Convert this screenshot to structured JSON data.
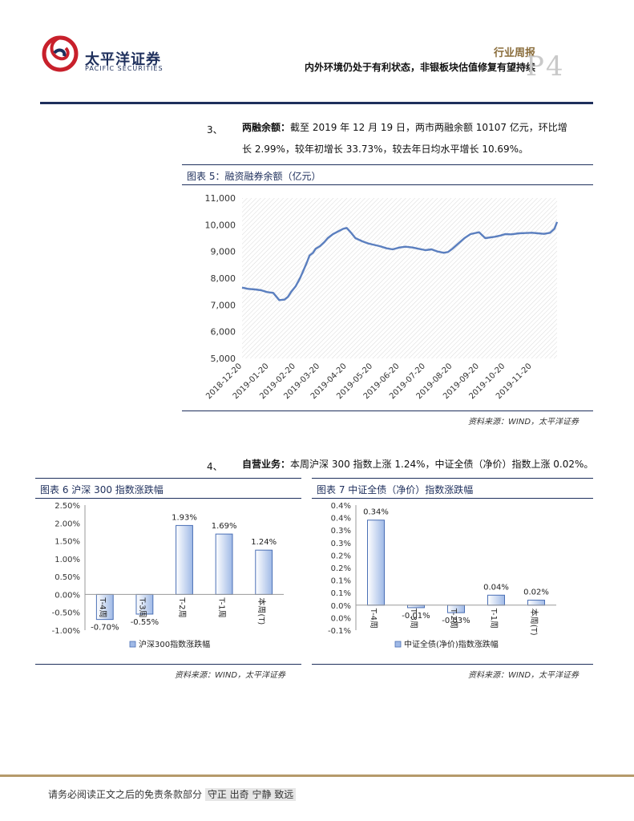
{
  "header": {
    "logo_cn": "太平洋证券",
    "logo_en": "PACIFIC SECURITIES",
    "report_type": "行业周报",
    "headline": "内外环境仍处于有利状态，非银板块估值修复有望持续",
    "page_label": "P4"
  },
  "section3": {
    "num": "3、",
    "title": "两融余额：",
    "line1": "截至 2019 年 12 月 19 日，两市两融余额 10107 亿元，环比增",
    "line2": "长 2.99%，较年初增长 33.73%，较去年日均水平增长 10.69%。"
  },
  "figure5": {
    "caption": "图表 5：融资融券余额（亿元）",
    "source": "资料来源：WIND，太平洋证券"
  },
  "section4": {
    "num": "4、",
    "title": "自营业务：",
    "text": "本周沪深 300 指数上涨 1.24%，中证全债（净价）指数上涨 0.02%。"
  },
  "figure6": {
    "caption": "图表 6  沪深 300 指数涨跌幅",
    "source": "资料来源：WIND，太平洋证券"
  },
  "figure7": {
    "caption": "图表 7  中证全债（净价）指数涨跌幅",
    "source": "资料来源：WIND，太平洋证券"
  },
  "chart_data": [
    {
      "type": "line",
      "title": "",
      "ylim": [
        5000,
        11000
      ],
      "yticks": [
        "5,000",
        "6,000",
        "7,000",
        "8,000",
        "9,000",
        "10,000",
        "11,000"
      ],
      "xticks": [
        "2018-12-20",
        "2019-01-20",
        "2019-02-20",
        "2019-03-20",
        "2019-04-20",
        "2019-05-20",
        "2019-06-20",
        "2019-07-20",
        "2019-08-20",
        "2019-09-20",
        "2019-10-20",
        "2019-11-20"
      ],
      "grid": "hatched background",
      "color": "#5b7fbf",
      "x": [
        "2018-12-20",
        "2018-12-27",
        "2019-01-04",
        "2019-01-11",
        "2019-01-18",
        "2019-01-25",
        "2019-02-01",
        "2019-02-07",
        "2019-02-11",
        "2019-02-15",
        "2019-02-20",
        "2019-02-25",
        "2019-03-01",
        "2019-03-05",
        "2019-03-08",
        "2019-03-12",
        "2019-03-15",
        "2019-03-20",
        "2019-03-25",
        "2019-03-29",
        "2019-04-04",
        "2019-04-10",
        "2019-04-16",
        "2019-04-20",
        "2019-04-25",
        "2019-04-30",
        "2019-05-08",
        "2019-05-15",
        "2019-05-20",
        "2019-05-28",
        "2019-06-05",
        "2019-06-12",
        "2019-06-20",
        "2019-06-27",
        "2019-07-05",
        "2019-07-12",
        "2019-07-20",
        "2019-07-27",
        "2019-08-03",
        "2019-08-10",
        "2019-08-15",
        "2019-08-20",
        "2019-08-27",
        "2019-09-03",
        "2019-09-10",
        "2019-09-17",
        "2019-09-20",
        "2019-09-27",
        "2019-10-08",
        "2019-10-15",
        "2019-10-20",
        "2019-10-27",
        "2019-11-05",
        "2019-11-12",
        "2019-11-20",
        "2019-11-27",
        "2019-12-04",
        "2019-12-11",
        "2019-12-16",
        "2019-12-19"
      ],
      "values": [
        7650,
        7600,
        7580,
        7550,
        7480,
        7450,
        7180,
        7200,
        7300,
        7500,
        7700,
        8000,
        8300,
        8600,
        8850,
        8950,
        9100,
        9200,
        9350,
        9500,
        9650,
        9750,
        9850,
        9880,
        9700,
        9500,
        9380,
        9300,
        9260,
        9200,
        9120,
        9080,
        9150,
        9180,
        9150,
        9100,
        9050,
        9080,
        9000,
        8950,
        8980,
        9100,
        9300,
        9500,
        9650,
        9700,
        9720,
        9500,
        9550,
        9600,
        9650,
        9640,
        9680,
        9690,
        9700,
        9680,
        9660,
        9700,
        9850,
        10107
      ]
    },
    {
      "type": "bar",
      "title": "",
      "legend": "沪深300指数涨跌幅",
      "legend_position": "bottom",
      "categories": [
        "T-4周",
        "T-3周",
        "T-2周",
        "T-1周",
        "本周(T)"
      ],
      "values": [
        -0.7,
        -0.55,
        1.93,
        1.69,
        1.24
      ],
      "value_labels": [
        "-0.70%",
        "-0.55%",
        "1.93%",
        "1.69%",
        "1.24%"
      ],
      "ylim": [
        -1.0,
        2.5
      ],
      "yticks": [
        "-1.00%",
        "-0.50%",
        "0.00%",
        "0.50%",
        "1.00%",
        "1.50%",
        "2.00%",
        "2.50%"
      ],
      "color": "#9fb9e6"
    },
    {
      "type": "bar",
      "title": "",
      "legend": "中证全债(净价)指数涨跌幅",
      "legend_position": "bottom",
      "categories": [
        "T-4周",
        "T-3周",
        "T-2周",
        "T-1周",
        "本周(T)"
      ],
      "values": [
        0.34,
        -0.01,
        -0.03,
        0.04,
        0.02
      ],
      "value_labels": [
        "0.34%",
        "-0.01%",
        "-0.03%",
        "0.04%",
        "0.02%"
      ],
      "ylim": [
        -0.1,
        0.4
      ],
      "yticks": [
        "-0.1%",
        "0.0%",
        "0.0%",
        "0.1%",
        "0.1%",
        "0.2%",
        "0.2%",
        "0.3%",
        "0.3%",
        "0.4%",
        "0.4%"
      ],
      "color": "#9fb9e6"
    }
  ],
  "footer": {
    "disclaimer": "请务必阅读正文之后的免责条款部分",
    "motto": "守正 出奇 宁静 致远"
  }
}
